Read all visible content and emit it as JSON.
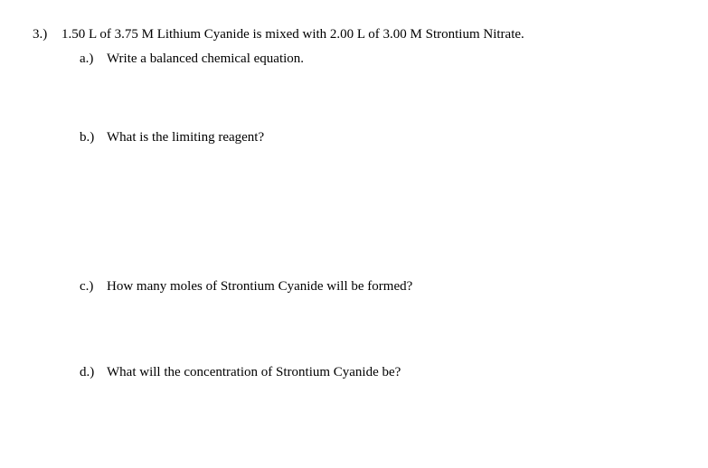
{
  "question": {
    "number": "3.)",
    "text": "1.50 L of 3.75 M Lithium Cyanide is mixed with 2.00 L of 3.00 M Strontium Nitrate."
  },
  "subquestions": {
    "a": {
      "label": "a.)",
      "text": "Write a balanced chemical equation."
    },
    "b": {
      "label": "b.)",
      "text": "What is the limiting reagent?"
    },
    "c": {
      "label": "c.)",
      "text": "How many moles of Strontium Cyanide will be formed?"
    },
    "d": {
      "label": "d.)",
      "text": "What will the concentration of Strontium Cyanide be?"
    }
  }
}
